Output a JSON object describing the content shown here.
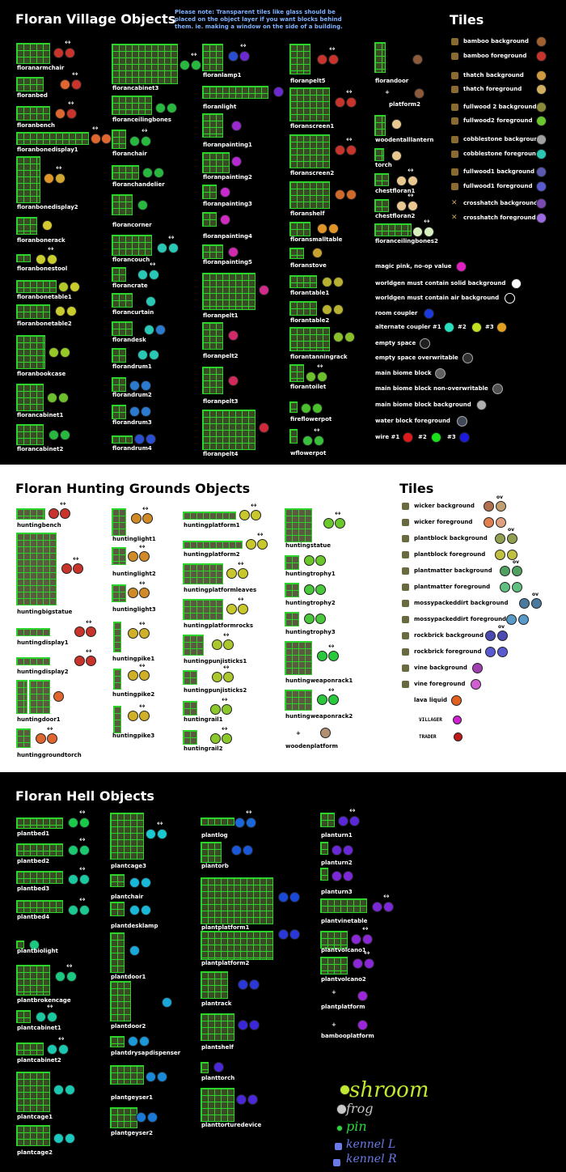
{
  "village": {
    "title": "Floran Village Objects",
    "note": "Please note: Transparent tiles like glass should be placed on the object layer if you want blocks behind them. ie. making a window on the side of a building.",
    "tiles_title": "Tiles",
    "objects": [
      "floranarmchair",
      "floranbed",
      "floranbench",
      "floranbonedisplay1",
      "floranbonedisplay2",
      "floranbonerack",
      "floranbonestool",
      "floranbonetable1",
      "floranbonetable2",
      "floranbookcase",
      "florancabinet1",
      "florancabinet2",
      "florancabinet3",
      "floranceilingbones",
      "floranchair",
      "floranchandelier",
      "florancorner",
      "florancouch",
      "florancrate",
      "florancurtain",
      "florandesk",
      "florandrum1",
      "florandrum2",
      "florandrum3",
      "florandrum4",
      "floranlamp1",
      "floranlight",
      "floranpainting1",
      "floranpainting2",
      "floranpainting3",
      "floranpainting4",
      "floranpainting5",
      "floranpelt1",
      "floranpelt2",
      "floranpelt3",
      "floranpelt4",
      "floranpelt5",
      "floranscreen1",
      "floranscreen2",
      "floranshelf",
      "floransmalltable",
      "floranstove",
      "florantable1",
      "florantable2",
      "florantanningrack",
      "florantoilet",
      "fireflowerpot",
      "wflowerpot",
      "florandoor",
      "platform2",
      "woodentalllantern",
      "torch",
      "chestfloran1",
      "chestfloran2",
      "floranceilingbones2"
    ],
    "tiles": [
      "bamboo background",
      "bamboo foreground",
      "thatch background",
      "thatch foreground",
      "fullwood 2 background",
      "fullwood2 foreground",
      "cobblestone background",
      "cobblestone foreground",
      "fullwood1 background",
      "fullwood1 foreground",
      "crosshatch background",
      "crosshatch foreground"
    ],
    "legend": [
      "magic pink, no-op value",
      "worldgen must contain solid background",
      "worldgen must contain air background",
      "room coupler",
      "alternate coupler #1",
      "#2",
      "#3",
      "empty space",
      "empty space overwritable",
      "main biome block",
      "main biome block non-overwritable",
      "main biome block background",
      "water block foreground",
      "wire #1",
      "#2",
      "#3"
    ]
  },
  "hunting": {
    "title": "Floran Hunting Grounds Objects",
    "tiles_title": "Tiles",
    "objects": [
      "huntingbench",
      "huntingbigstatue",
      "huntingdisplay1",
      "huntingdisplay2",
      "huntingdoor1",
      "huntinggroundtorch",
      "huntinglight1",
      "huntinglight2",
      "huntinglight3",
      "huntingpike1",
      "huntingpike2",
      "huntingpike3",
      "huntingplatform1",
      "huntingplatform2",
      "huntingplatformleaves",
      "huntingplatformrocks",
      "huntingpunjisticks1",
      "huntingpunjisticks2",
      "huntingrail1",
      "huntingrail2",
      "huntingstatue",
      "huntingtrophy1",
      "huntingtrophy2",
      "huntingtrophy3",
      "huntingweaponrack1",
      "huntingweaponrack2",
      "woodenplatform"
    ],
    "tiles": [
      "wicker background",
      "wicker foreground",
      "plantblock background",
      "plantblock foreground",
      "plantmatter background",
      "plantmatter foreground",
      "mossypackeddirt background",
      "mossypackeddirt foreground",
      "rockbrick background",
      "rockbrick foreground",
      "vine background",
      "vine foreground",
      "lava liquid"
    ],
    "ov": "ov",
    "npcs": [
      "VILLAGER",
      "TRADER"
    ]
  },
  "hell": {
    "title": "Floran Hell Objects",
    "objects": [
      "plantbed1",
      "plantbed2",
      "plantbed3",
      "plantbed4",
      "plantbiolight",
      "plantbrokencage",
      "plantcabinet1",
      "plantcabinet2",
      "plantcage1",
      "plantcage2",
      "plantcage3",
      "plantchair",
      "plantdesklamp",
      "plantdoor1",
      "plantdoor2",
      "plantdrysapdispenser",
      "plantgeyser1",
      "plantgeyser2",
      "plantlog",
      "plantorb",
      "plantplatform1",
      "plantplatform2",
      "plantrack",
      "plantshelf",
      "planttorch",
      "planttorturedevice",
      "planturn1",
      "planturn2",
      "planturn3",
      "plantvinetable",
      "plantvolcano1",
      "plantvolcano2",
      "plantplatform",
      "bambooplatform"
    ],
    "scribbles": [
      "shroom",
      "frog",
      "pin",
      "kennel L",
      "kennel R"
    ]
  },
  "arrow_glyph": "↔",
  "plus_glyph": "+"
}
